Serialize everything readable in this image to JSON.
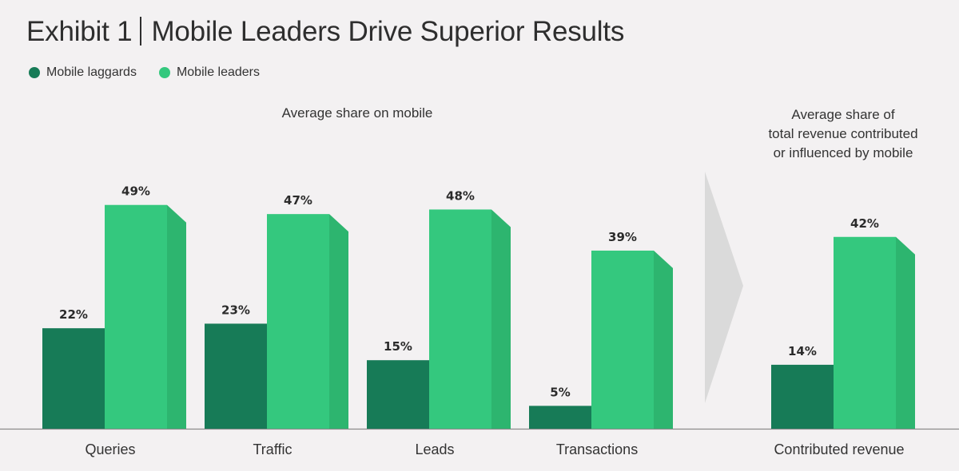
{
  "header": {
    "exhibit": "Exhibit 1",
    "title": "Mobile Leaders Drive Superior Results"
  },
  "legend": [
    {
      "label": "Mobile laggards",
      "color": "#177b57"
    },
    {
      "label": "Mobile leaders",
      "color": "#34c87e"
    }
  ],
  "subheads": {
    "left": "Average share on mobile",
    "right": [
      "Average share of",
      "total revenue contributed",
      "or influenced by mobile"
    ]
  },
  "colors": {
    "laggards": "#177b57",
    "leaders": "#34c87e",
    "leaders_side": "#2db56f",
    "arrow": "#dadada",
    "baseline": "#8a8a8a"
  },
  "chart_data": {
    "type": "bar",
    "categories": [
      "Queries",
      "Traffic",
      "Leads",
      "Transactions",
      "Contributed revenue"
    ],
    "series": [
      {
        "name": "Mobile laggards",
        "values": [
          22,
          23,
          15,
          5,
          14
        ]
      },
      {
        "name": "Mobile leaders",
        "values": [
          49,
          47,
          48,
          39,
          42
        ]
      }
    ],
    "data_labels": {
      "Mobile laggards": [
        "22%",
        "23%",
        "15%",
        "5%",
        "14%"
      ],
      "Mobile leaders": [
        "49%",
        "47%",
        "48%",
        "39%",
        "42%"
      ]
    },
    "unit": "%",
    "ylim": [
      0,
      55
    ],
    "grid": false,
    "legend_position": "top-left"
  }
}
